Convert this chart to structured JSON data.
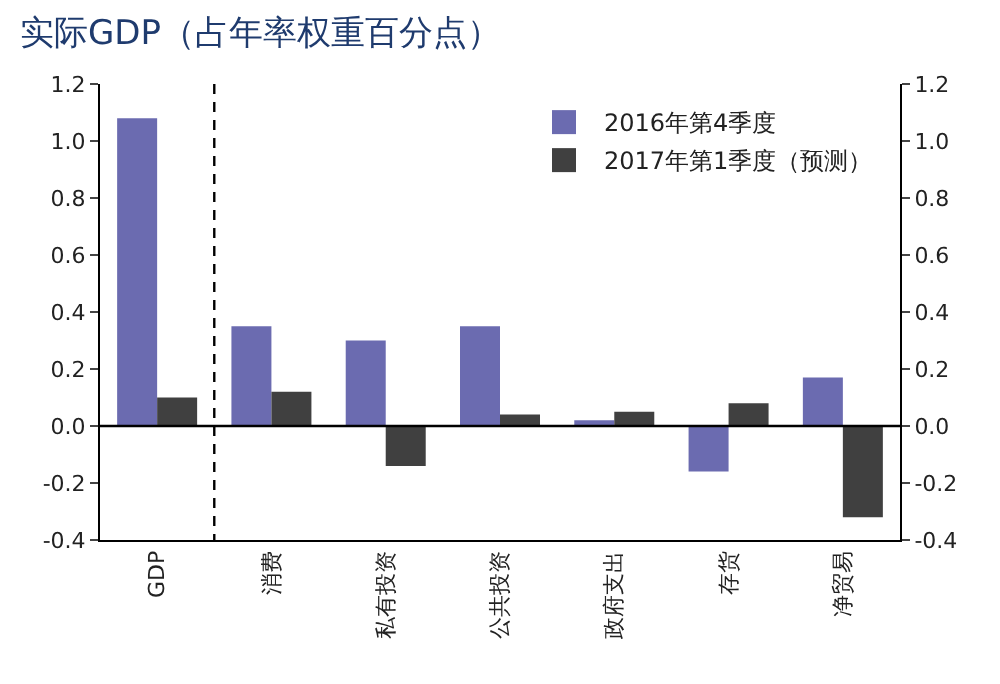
{
  "chart_data": {
    "type": "bar",
    "title": "实际GDP（占年率权重百分点）",
    "categories": [
      "GDP",
      "消费",
      "私有投资",
      "公共投资",
      "政府支出",
      "存货",
      "净贸易"
    ],
    "series": [
      {
        "name": "2016年第4季度",
        "color": "#6b6bb0",
        "values": [
          1.08,
          0.35,
          0.3,
          0.35,
          0.02,
          -0.16,
          0.17
        ]
      },
      {
        "name": "2017年第1季度（预测）",
        "color": "#404040",
        "values": [
          0.1,
          0.12,
          -0.14,
          0.04,
          0.05,
          0.08,
          -0.32
        ]
      }
    ],
    "ylim": [
      -0.4,
      1.2
    ],
    "yticks": [
      {
        "value": -0.4,
        "label": "-0.4"
      },
      {
        "value": -0.2,
        "label": "-0.2"
      },
      {
        "value": 0,
        "label": "0.0"
      },
      {
        "value": 0.2,
        "label": "0.2"
      },
      {
        "value": 0.4,
        "label": "0.4"
      },
      {
        "value": 0.6,
        "label": "0.6"
      },
      {
        "value": 0.8,
        "label": "0.8"
      },
      {
        "value": 1,
        "label": "1.0"
      },
      {
        "value": 1.2,
        "label": "1.2"
      }
    ],
    "y2lim": [
      -0.4,
      1.2
    ],
    "y2ticks": [
      {
        "value": -0.4,
        "label": "-0.4"
      },
      {
        "value": -0.2,
        "label": "-0.2"
      },
      {
        "value": 0,
        "label": "0.0"
      },
      {
        "value": 0.2,
        "label": "0.2"
      },
      {
        "value": 0.4,
        "label": "0.4"
      },
      {
        "value": 0.6,
        "label": "0.6"
      },
      {
        "value": 0.8,
        "label": "0.8"
      },
      {
        "value": 1,
        "label": "1.0"
      },
      {
        "value": 1.2,
        "label": "1.2"
      }
    ],
    "ref_lines": [
      {
        "axis": "y",
        "value": 0,
        "color": "#000000"
      }
    ],
    "grid": false,
    "legend": "top right"
  }
}
